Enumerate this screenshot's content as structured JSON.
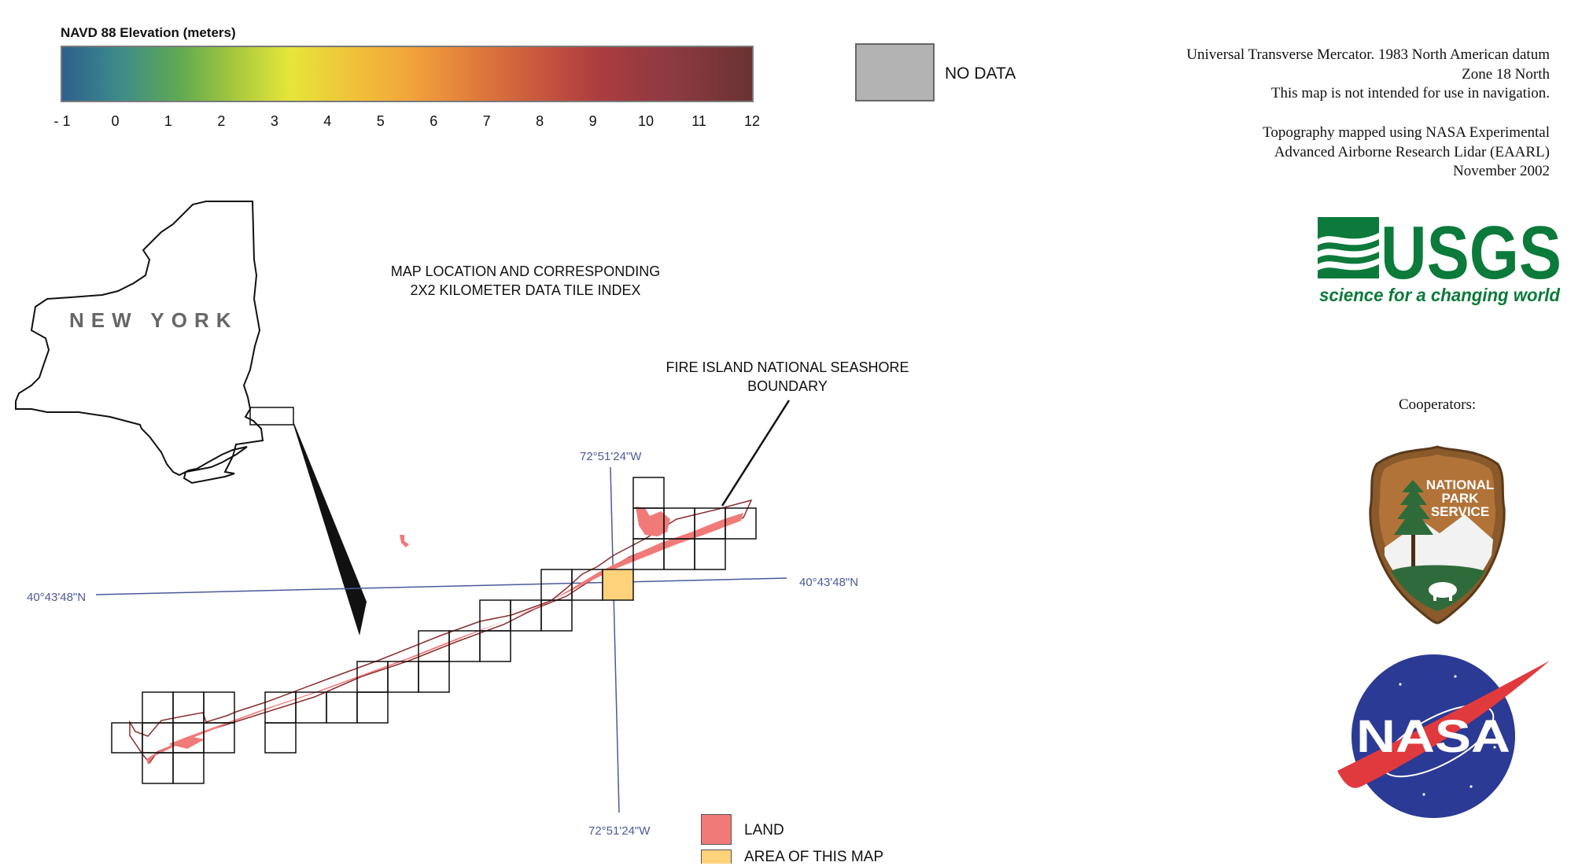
{
  "elevation_legend": {
    "title": "NAVD 88 Elevation (meters)",
    "ticks": [
      "- 1",
      "0",
      "1",
      "2",
      "3",
      "4",
      "5",
      "6",
      "7",
      "8",
      "9",
      "10",
      "11",
      "12"
    ],
    "range": [
      -1,
      12
    ]
  },
  "no_data": {
    "label": "NO DATA",
    "color": "#b3b3b3"
  },
  "projection": {
    "line1": "Universal Transverse Mercator.  1983 North American datum",
    "line2": "Zone 18 North",
    "line3": "This map is not intended for use in navigation."
  },
  "topography": {
    "line1": "Topography mapped using NASA Experimental",
    "line2": "Advanced Airborne Research Lidar (EAARL)",
    "line3": "November 2002"
  },
  "usgs_logo": {
    "wordmark": "USGS",
    "tagline": "science for a changing world",
    "color": "#0b7a3a"
  },
  "cooperators_label": "Cooperators:",
  "nps_logo": {
    "line1": "NATIONAL",
    "line2": "PARK",
    "line3": "SERVICE"
  },
  "nasa_logo": {
    "wordmark": "NASA"
  },
  "map": {
    "state_label": "NEW YORK",
    "title_line1": "MAP LOCATION AND CORRESPONDING",
    "title_line2": "2X2 KILOMETER DATA TILE INDEX",
    "boundary_label_line1": "FIRE ISLAND NATIONAL SEASHORE",
    "boundary_label_line2": "BOUNDARY",
    "lon_label_top": "72°51'24\"W",
    "lon_label_bottom": "72°51'24\"W",
    "lat_label_left": "40°43'48\"N",
    "lat_label_right": "40°43'48\"N"
  },
  "map_legend": {
    "land_label": "LAND",
    "land_color": "#f07a78",
    "area_label": "AREA OF THIS MAP",
    "area_color": "#fdd27a"
  }
}
